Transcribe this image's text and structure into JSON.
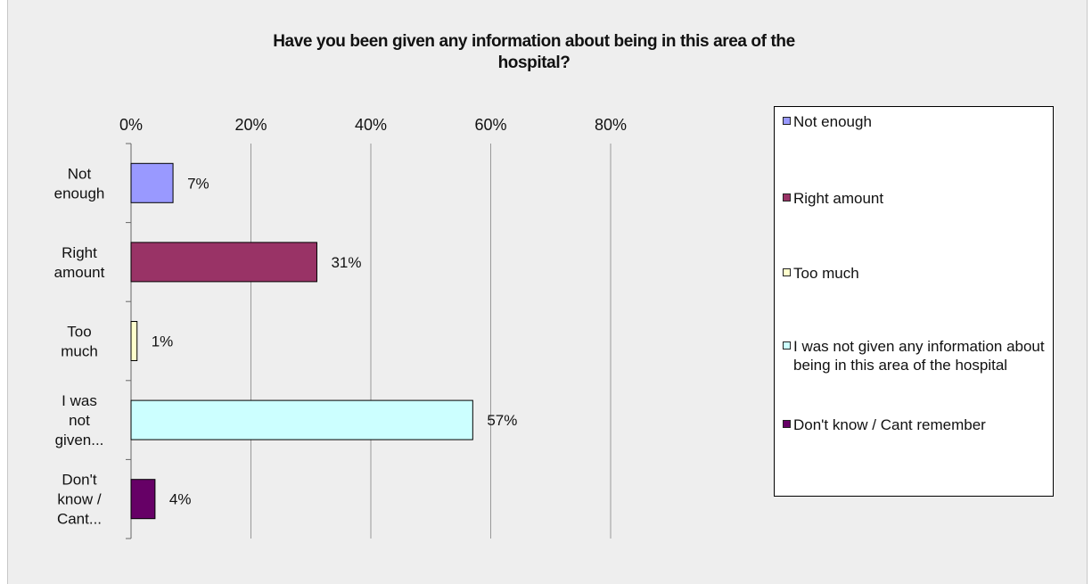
{
  "chart_data": {
    "type": "bar",
    "orientation": "horizontal",
    "title_lines": [
      "Have you been given any information about being in this area of the",
      "hospital?"
    ],
    "xlim": [
      0,
      0.8
    ],
    "x_ticks": [
      "0%",
      "20%",
      "40%",
      "60%",
      "80%"
    ],
    "x_axis_position": "top",
    "grid": true,
    "legend_position": "right",
    "categories": [
      {
        "label_lines": [
          "Not",
          "enough"
        ],
        "value": 0.07,
        "data_label": "7%",
        "legend": "Not enough",
        "color": "#9999ff"
      },
      {
        "label_lines": [
          "Right",
          "amount"
        ],
        "value": 0.31,
        "data_label": "31%",
        "legend": "Right amount",
        "color": "#993366"
      },
      {
        "label_lines": [
          "Too",
          "much"
        ],
        "value": 0.01,
        "data_label": "1%",
        "legend": "Too much",
        "color": "#ffffcc"
      },
      {
        "label_lines": [
          "I was",
          "not",
          "given..."
        ],
        "value": 0.57,
        "data_label": "57%",
        "legend": "I was not given any information about being in this area of the hospital",
        "color": "#ccffff"
      },
      {
        "label_lines": [
          "Don't",
          "know /",
          "Cant..."
        ],
        "value": 0.04,
        "data_label": "4%",
        "legend": "Don't know / Cant remember",
        "color": "#660066"
      }
    ]
  }
}
